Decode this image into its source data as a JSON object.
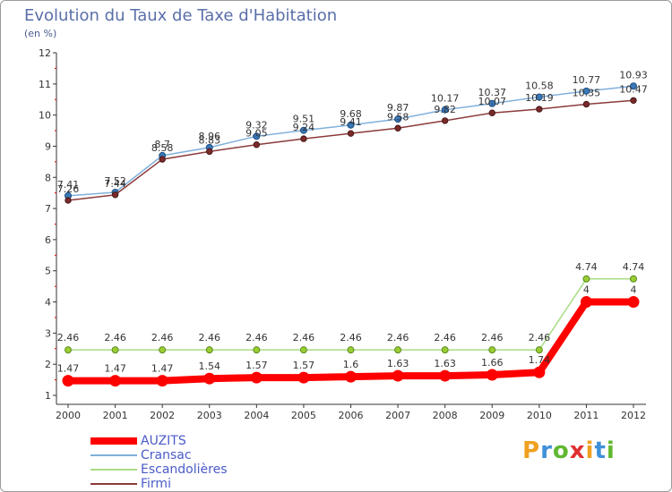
{
  "page": {
    "title": "Evolution du Taux de Taxe d'Habitation",
    "unit": "(en %)"
  },
  "logo": {
    "letters": [
      "P",
      "r",
      "o",
      "x",
      "i",
      "t",
      "i"
    ],
    "colors": [
      "#f0a020",
      "#3f90d8",
      "#60b830",
      "#e03030",
      "#f0a020",
      "#3f90d8",
      "#60b830"
    ]
  },
  "chart_data": {
    "type": "line",
    "title": "Evolution du Taux de Taxe d'Habitation",
    "ylabel": "(en %)",
    "xlabel": "",
    "x": [
      "2000",
      "2001",
      "2002",
      "2003",
      "2004",
      "2005",
      "2006",
      "2007",
      "2008",
      "2009",
      "2010",
      "2011",
      "2012"
    ],
    "ylim": [
      1,
      12
    ],
    "yticks": [
      "1",
      "2",
      "3",
      "4",
      "5",
      "6",
      "7",
      "8",
      "9",
      "10",
      "11",
      "12"
    ],
    "grid": false,
    "legend_position": "bottom-left",
    "series": [
      {
        "name": "AUZITS",
        "color": "#ff0000",
        "values": [
          1.47,
          1.47,
          1.47,
          1.54,
          1.57,
          1.57,
          1.6,
          1.63,
          1.63,
          1.66,
          1.74,
          4,
          4
        ],
        "labels": [
          "1.47",
          "1.47",
          "1.47",
          "1.54",
          "1.57",
          "1.57",
          "1.6",
          "1.63",
          "1.63",
          "1.66",
          "1.74",
          "4",
          "4"
        ]
      },
      {
        "name": "Cransac",
        "color": "#7fb0dc",
        "values": [
          7.41,
          7.52,
          8.7,
          8.96,
          9.32,
          9.51,
          9.68,
          9.87,
          10.17,
          10.37,
          10.58,
          10.77,
          10.93
        ],
        "labels": [
          "7.41",
          "7.52",
          "8.7",
          "8.96",
          "9.32",
          "9.51",
          "9.68",
          "9.87",
          "10.17",
          "10.37",
          "10.58",
          "10.77",
          "10.93"
        ]
      },
      {
        "name": "Escandolières",
        "color": "#a9dc84",
        "values": [
          2.46,
          2.46,
          2.46,
          2.46,
          2.46,
          2.46,
          2.46,
          2.46,
          2.46,
          2.46,
          2.46,
          4.74,
          4.74
        ],
        "labels": [
          "2.46",
          "2.46",
          "2.46",
          "2.46",
          "2.46",
          "2.46",
          "2.46",
          "2.46",
          "2.46",
          "2.46",
          "2.46",
          "4.74",
          "4.74"
        ]
      },
      {
        "name": "Firmi",
        "color": "#8b3a3a",
        "values": [
          7.26,
          7.44,
          8.58,
          8.83,
          9.05,
          9.24,
          9.41,
          9.58,
          9.82,
          10.07,
          10.19,
          10.35,
          10.47
        ],
        "labels": [
          "7.26",
          "7.44",
          "8.58",
          "8.83",
          "9.05",
          "9.24",
          "9.41",
          "9.58",
          "9.82",
          "10.07",
          "10.19",
          "10.35",
          "10.47"
        ]
      }
    ]
  }
}
